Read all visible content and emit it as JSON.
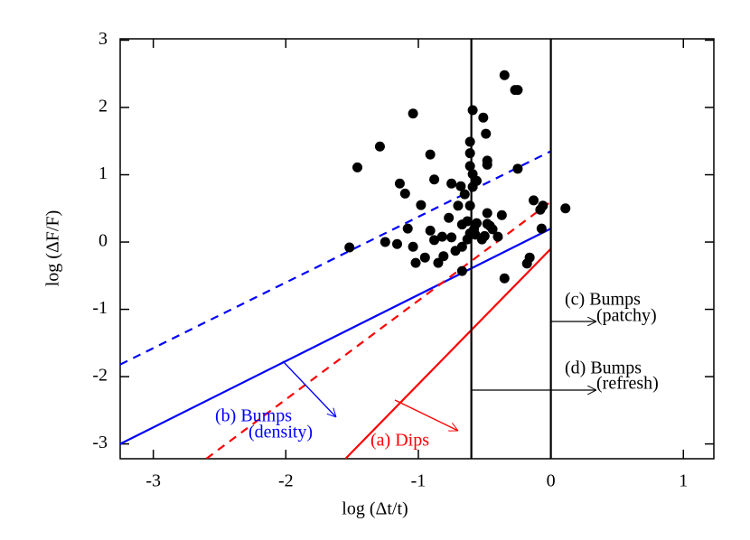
{
  "chart_data": {
    "type": "scatter",
    "x_label": "log (Δt/t)",
    "y_label": "log (ΔF/F)",
    "xlim": [
      -3.25,
      1.23
    ],
    "ylim": [
      -3.22,
      3.02
    ],
    "xticks": [
      -3,
      -2,
      -1,
      0,
      1
    ],
    "yticks": [
      -3,
      -2,
      -1,
      0,
      1,
      2,
      3
    ],
    "color": "#000000",
    "x": [
      -1.52,
      -1.46,
      -1.29,
      -1.25,
      -1.14,
      -1.1,
      -1.16,
      -1.04,
      -1.08,
      -1.04,
      -1.02,
      -0.98,
      -0.95,
      -0.91,
      -0.91,
      -0.88,
      -0.85,
      -0.82,
      -0.81,
      -0.88,
      -0.77,
      -0.75,
      -0.72,
      -0.7,
      -0.68,
      -0.67,
      -0.67,
      -0.65,
      -0.67,
      -0.63,
      -0.63,
      -0.61,
      -0.61,
      -0.61,
      -0.59,
      -0.59,
      -0.61,
      -0.59,
      -0.61,
      -0.58,
      -0.57,
      -0.56,
      -0.56,
      -0.51,
      -0.49,
      -0.48,
      -0.48,
      -0.52,
      -0.5,
      -0.48,
      -0.48,
      -0.46,
      -0.44,
      -0.4,
      -0.37,
      -0.35,
      -0.27,
      -0.25,
      -0.25,
      -0.18,
      -0.16,
      -0.13,
      -0.08,
      -0.06,
      -0.07,
      0.11,
      -0.35,
      -0.75
    ],
    "values": [
      -0.08,
      1.11,
      1.42,
      0,
      0.87,
      0.72,
      -0.03,
      1.91,
      0.2,
      -0.07,
      -0.31,
      0.55,
      -0.23,
      1.3,
      0.17,
      0.03,
      -0.31,
      0.08,
      -0.21,
      0.93,
      0.36,
      0.07,
      -0.13,
      0.54,
      0.83,
      -0.07,
      0.26,
      0.71,
      -0.43,
      0.31,
      0.04,
      1.49,
      1.32,
      1.13,
      1.01,
      0.82,
      0.54,
      1.96,
      0.13,
      0.19,
      0.11,
      0.28,
      0.91,
      1.85,
      1.61,
      1.15,
      1.21,
      0.04,
      0.09,
      0.43,
      0.27,
      0.24,
      0.19,
      0.08,
      0.4,
      2.48,
      2.26,
      2.26,
      1.09,
      -0.32,
      -0.23,
      0.62,
      0.48,
      0.54,
      0.2,
      0.5,
      -0.54,
      0.87
    ],
    "lines": [
      {
        "color": "#0000ff",
        "dash": true,
        "x": [
          -3.25,
          0
        ],
        "values": [
          -1.82,
          1.35
        ]
      },
      {
        "color": "#0000ff",
        "dash": false,
        "x": [
          -3.25,
          0
        ],
        "values": [
          -3.0,
          0.2
        ]
      },
      {
        "color": "#ff0000",
        "dash": true,
        "x": [
          -2.6,
          0
        ],
        "values": [
          -3.22,
          0.6
        ]
      },
      {
        "color": "#ff0000",
        "dash": false,
        "x": [
          -1.55,
          0
        ],
        "values": [
          -3.22,
          -0.1
        ]
      },
      {
        "color": "#000000",
        "dash": false,
        "x": [
          -0.6,
          -0.6
        ],
        "values": [
          -3.22,
          3.02
        ]
      },
      {
        "color": "#000000",
        "dash": false,
        "x": [
          0,
          0
        ],
        "values": [
          -3.22,
          3.02
        ]
      }
    ],
    "annotations": [
      {
        "text": "(b) Bumps",
        "color": "#0000ff"
      },
      {
        "text": "(density)",
        "color": "#0000ff"
      },
      {
        "text": "(a) Dips",
        "color": "#ff0000"
      },
      {
        "text": "(c) Bumps",
        "color": "#000000"
      },
      {
        "text": "(patchy)",
        "color": "#000000"
      },
      {
        "text": "(d) Bumps",
        "color": "#000000"
      },
      {
        "text": "(refresh)",
        "color": "#000000"
      }
    ]
  }
}
